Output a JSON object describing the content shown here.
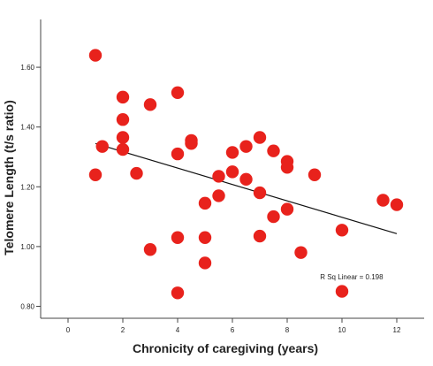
{
  "chart_data": {
    "type": "scatter",
    "title": "",
    "xlabel": "Chronicity of caregiving (years)",
    "ylabel": "Telomere Length (t/s ratio)",
    "xlim": [
      -1,
      13
    ],
    "ylim": [
      0.76,
      1.76
    ],
    "xticks": [
      0,
      2,
      4,
      6,
      8,
      10,
      12
    ],
    "xtick_labels": [
      "0",
      "2",
      "4",
      "6",
      "8",
      "10",
      "12"
    ],
    "yticks": [
      0.8,
      1.0,
      1.2,
      1.4,
      1.6
    ],
    "ytick_labels": [
      "0.80",
      "1.00",
      "1.20",
      "1.40",
      "1.60"
    ],
    "grid": false,
    "legend": false,
    "point_color": "#e8221c",
    "fit_line_color": "#111111",
    "points": [
      {
        "x": 1.0,
        "y": 1.64
      },
      {
        "x": 1.0,
        "y": 1.24
      },
      {
        "x": 1.25,
        "y": 1.335
      },
      {
        "x": 2.0,
        "y": 1.5
      },
      {
        "x": 2.0,
        "y": 1.425
      },
      {
        "x": 2.0,
        "y": 1.365
      },
      {
        "x": 2.0,
        "y": 1.325
      },
      {
        "x": 2.5,
        "y": 1.245
      },
      {
        "x": 3.0,
        "y": 1.475
      },
      {
        "x": 3.0,
        "y": 0.99
      },
      {
        "x": 4.0,
        "y": 1.515
      },
      {
        "x": 4.0,
        "y": 1.31
      },
      {
        "x": 4.0,
        "y": 1.03
      },
      {
        "x": 4.0,
        "y": 0.845
      },
      {
        "x": 4.5,
        "y": 1.355
      },
      {
        "x": 4.5,
        "y": 1.345
      },
      {
        "x": 5.0,
        "y": 1.145
      },
      {
        "x": 5.0,
        "y": 1.03
      },
      {
        "x": 5.0,
        "y": 0.945
      },
      {
        "x": 5.5,
        "y": 1.235
      },
      {
        "x": 5.5,
        "y": 1.17
      },
      {
        "x": 6.0,
        "y": 1.315
      },
      {
        "x": 6.0,
        "y": 1.25
      },
      {
        "x": 6.5,
        "y": 1.335
      },
      {
        "x": 6.5,
        "y": 1.225
      },
      {
        "x": 7.0,
        "y": 1.365
      },
      {
        "x": 7.0,
        "y": 1.18
      },
      {
        "x": 7.0,
        "y": 1.035
      },
      {
        "x": 7.5,
        "y": 1.32
      },
      {
        "x": 7.5,
        "y": 1.1
      },
      {
        "x": 8.0,
        "y": 1.285
      },
      {
        "x": 8.0,
        "y": 1.265
      },
      {
        "x": 8.0,
        "y": 1.125
      },
      {
        "x": 8.5,
        "y": 0.98
      },
      {
        "x": 9.0,
        "y": 1.24
      },
      {
        "x": 10.0,
        "y": 1.055
      },
      {
        "x": 10.0,
        "y": 0.85
      },
      {
        "x": 11.5,
        "y": 1.155
      },
      {
        "x": 12.0,
        "y": 1.14
      }
    ],
    "fit_line": {
      "x": [
        1,
        12
      ],
      "y": [
        1.345,
        1.043
      ]
    },
    "annotation": "R Sq Linear = 0.198"
  }
}
